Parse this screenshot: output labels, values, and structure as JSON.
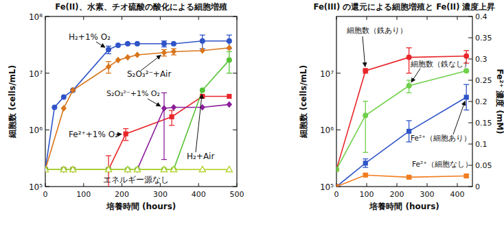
{
  "chart_data": [
    {
      "type": "line",
      "title": "Fe(II)、水素、チオ硫酸の酸化による細胞増殖",
      "x_label": "培養時間 (hours)",
      "y_label": "細胞数 (cells/mL)",
      "log": "y",
      "xlim": [
        0,
        500
      ],
      "xticks": [
        0,
        100,
        200,
        300,
        400,
        500
      ],
      "ylim": [
        100000,
        100000000
      ],
      "yticks": [
        {
          "value": 100000,
          "label": "10⁵"
        },
        {
          "value": 1000000,
          "label": "10⁶"
        },
        {
          "value": 10000000,
          "label": "10⁷"
        },
        {
          "value": 100000000,
          "label": "10⁸"
        }
      ],
      "series": [
        {
          "name": "H₂+1% O₂",
          "color": "#2f54c8",
          "marker": "circle",
          "x": [
            0,
            24,
            48,
            72,
            165,
            190,
            215,
            240,
            310,
            335,
            410,
            480
          ],
          "values": [
            200000,
            2500000,
            3800000,
            5000000,
            26000000,
            31000000,
            33000000,
            33000000,
            33000000,
            33000000,
            37000000,
            37000000
          ],
          "errors": [
            null,
            null,
            null,
            null,
            4000000,
            null,
            null,
            null,
            4000000,
            null,
            10000000,
            10000000
          ]
        },
        {
          "name": "S₂O₃²⁻+Air",
          "color": "#d9751a",
          "marker": "diamond",
          "x": [
            0,
            48,
            72,
            165,
            190,
            215,
            240,
            310,
            335,
            410,
            480
          ],
          "values": [
            200000,
            2400000,
            5000000,
            13000000,
            17000000,
            19000000,
            21000000,
            23000000,
            24000000,
            25000000,
            28000000
          ],
          "errors": [
            null,
            null,
            null,
            3000000,
            null,
            null,
            null,
            3000000,
            3000000,
            null,
            null
          ]
        },
        {
          "name": "Fe²⁺+1% O₂",
          "color": "#e8262a",
          "marker": "square",
          "x": [
            0,
            48,
            72,
            165,
            210,
            330,
            410,
            480
          ],
          "values": [
            200000,
            200000,
            200000,
            200000,
            850000,
            1700000,
            3900000,
            3900000
          ],
          "errors": [
            null,
            null,
            null,
            150000,
            200000,
            500000,
            null,
            null
          ]
        },
        {
          "name": "S₂O₃²⁻+1% O₂",
          "color": "#8a1f9a",
          "marker": "diamond",
          "x": [
            0,
            48,
            72,
            165,
            215,
            240,
            310,
            335,
            410,
            480
          ],
          "values": [
            200000,
            200000,
            200000,
            200000,
            200000,
            200000,
            2400000,
            2500000,
            2500000,
            2800000
          ],
          "errors": [
            null,
            null,
            null,
            null,
            null,
            null,
            2100000,
            null,
            null,
            null
          ]
        },
        {
          "name": "H₂+Air",
          "color": "#55c234",
          "marker": "circle",
          "x": [
            0,
            48,
            72,
            165,
            215,
            240,
            310,
            335,
            410,
            480
          ],
          "values": [
            200000,
            200000,
            200000,
            200000,
            200000,
            200000,
            200000,
            200000,
            5000000,
            17000000
          ],
          "errors": [
            null,
            null,
            null,
            null,
            null,
            null,
            null,
            null,
            null,
            7000000
          ]
        },
        {
          "name": "エネルギー源なし",
          "color": "#b5d334",
          "marker": "triangle-open",
          "x": [
            0,
            48,
            72,
            165,
            215,
            240,
            310,
            335,
            410,
            480
          ],
          "values": [
            200000,
            200000,
            200000,
            200000,
            200000,
            200000,
            200000,
            200000,
            200000,
            200000
          ]
        }
      ]
    },
    {
      "type": "line",
      "title": "Fe(III) の還元による細胞増殖と Fe(II) 濃度上昇",
      "x_label": "培養時間 (hours)",
      "y_label": "細胞数 (cells/mL)",
      "y2_label": "Fe²⁺ 濃度 (mM)",
      "log": "y",
      "xlim": [
        0,
        450
      ],
      "xticks": [
        0,
        100,
        200,
        300,
        400
      ],
      "ylim": [
        100000,
        100000000
      ],
      "yticks": [
        {
          "value": 100000,
          "label": "10⁵"
        },
        {
          "value": 1000000,
          "label": "10⁶"
        },
        {
          "value": 10000000,
          "label": "10⁷"
        }
      ],
      "y2lim": [
        0,
        0.4
      ],
      "y2ticks": [
        0,
        0.05,
        0.1,
        0.15,
        0.2,
        0.25,
        0.3,
        0.35,
        0.4
      ],
      "series": [
        {
          "name": "細胞数（鉄あり）",
          "color": "#e8262a",
          "marker": "circle",
          "x": [
            0,
            96,
            240,
            430
          ],
          "values": [
            200000,
            11000000,
            19000000,
            20000000
          ],
          "errors": [
            null,
            1000000,
            9000000,
            5000000
          ]
        },
        {
          "name": "細胞数（鉄なし）",
          "color": "#6fd04a",
          "marker": "circle",
          "x": [
            0,
            96,
            240,
            430
          ],
          "values": [
            200000,
            1800000,
            6000000,
            11000000
          ],
          "errors": [
            null,
            1400000,
            1500000,
            500000
          ]
        },
        {
          "name": "Fe²⁺（細胞あり）",
          "color": "#2f54c8",
          "marker": "square",
          "axis": "y2",
          "x": [
            0,
            96,
            240,
            430
          ],
          "values": [
            0,
            0.055,
            0.13,
            0.21
          ],
          "errors": [
            null,
            0.01,
            0.025,
            0.03
          ]
        },
        {
          "name": "Fe²⁺（細胞なし）",
          "color": "#f07d20",
          "marker": "square",
          "axis": "y2",
          "x": [
            0,
            96,
            240,
            430
          ],
          "values": [
            0,
            0.027,
            0.022,
            0.025
          ],
          "errors": [
            null,
            0.003,
            0.003,
            0.003
          ]
        }
      ]
    }
  ]
}
